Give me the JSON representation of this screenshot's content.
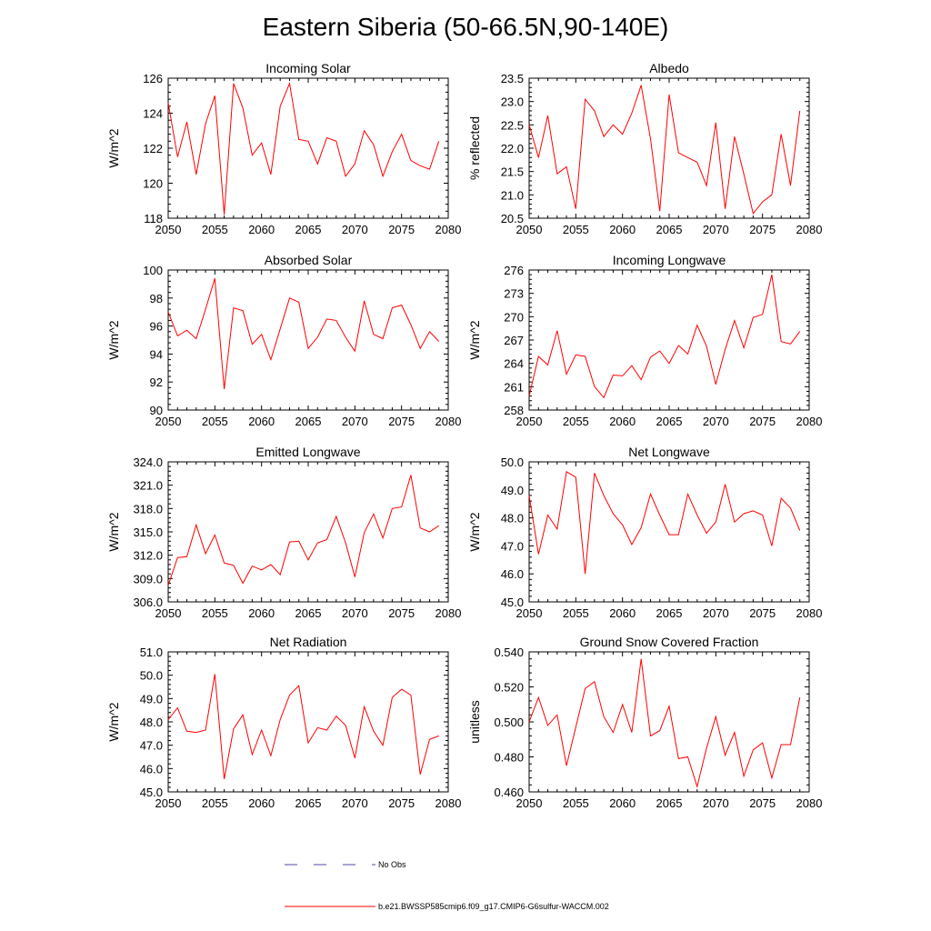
{
  "page": {
    "title": "Eastern Siberia (50-66.5N,90-140E)"
  },
  "legend": {
    "obs_label": "No Obs",
    "model_label": "b.e21.BWSSP585cmip6.f09_g17.CMIP6-G6sulfur-WACCM.002",
    "obs_color": "#4a4aa8",
    "model_color": "#ff0000"
  },
  "chart_data": [
    {
      "type": "line",
      "title": "Incoming Solar",
      "xlabel": "",
      "ylabel": "W/m^2",
      "xlim": [
        2050,
        2080
      ],
      "ylim": [
        118,
        126
      ],
      "xticks": [
        2050,
        2055,
        2060,
        2065,
        2070,
        2075,
        2080
      ],
      "yticks": [
        "118",
        "120",
        "122",
        "124",
        "126"
      ],
      "x": [
        2050,
        2051,
        2052,
        2053,
        2054,
        2055,
        2056,
        2057,
        2058,
        2059,
        2060,
        2061,
        2062,
        2063,
        2064,
        2065,
        2066,
        2067,
        2068,
        2069,
        2070,
        2071,
        2072,
        2073,
        2074,
        2075,
        2076,
        2077,
        2078,
        2079
      ],
      "series": [
        {
          "values": [
            124.6,
            121.5,
            123.5,
            120.5,
            123.4,
            125.0,
            118.2,
            125.7,
            124.3,
            121.6,
            122.3,
            120.5,
            124.4,
            125.7,
            122.5,
            122.4,
            121.1,
            122.6,
            122.4,
            120.4,
            121.1,
            123.0,
            122.2,
            120.4,
            121.8,
            122.8,
            121.3,
            121.0,
            120.8,
            122.4
          ]
        }
      ]
    },
    {
      "type": "line",
      "title": "Albedo",
      "xlabel": "",
      "ylabel": "% reflected",
      "xlim": [
        2050,
        2080
      ],
      "ylim": [
        20.5,
        23.5
      ],
      "xticks": [
        2050,
        2055,
        2060,
        2065,
        2070,
        2075,
        2080
      ],
      "yticks": [
        "20.5",
        "21.0",
        "21.5",
        "22.0",
        "22.5",
        "23.0",
        "23.5"
      ],
      "x": [
        2050,
        2051,
        2052,
        2053,
        2054,
        2055,
        2056,
        2057,
        2058,
        2059,
        2060,
        2061,
        2062,
        2063,
        2064,
        2065,
        2066,
        2067,
        2068,
        2069,
        2070,
        2071,
        2072,
        2073,
        2074,
        2075,
        2076,
        2077,
        2078,
        2079
      ],
      "series": [
        {
          "values": [
            22.5,
            21.8,
            22.7,
            21.45,
            21.6,
            20.7,
            23.05,
            22.8,
            22.25,
            22.5,
            22.3,
            22.75,
            23.35,
            22.2,
            20.65,
            23.15,
            21.9,
            21.8,
            21.7,
            21.2,
            22.55,
            20.7,
            22.25,
            21.45,
            20.6,
            20.85,
            21.0,
            22.3,
            21.2,
            22.8
          ]
        }
      ]
    },
    {
      "type": "line",
      "title": "Absorbed Solar",
      "xlabel": "",
      "ylabel": "W/m^2",
      "xlim": [
        2050,
        2080
      ],
      "ylim": [
        90,
        100
      ],
      "xticks": [
        2050,
        2055,
        2060,
        2065,
        2070,
        2075,
        2080
      ],
      "yticks": [
        "90",
        "92",
        "94",
        "96",
        "98",
        "100"
      ],
      "x": [
        2050,
        2051,
        2052,
        2053,
        2054,
        2055,
        2056,
        2057,
        2058,
        2059,
        2060,
        2061,
        2062,
        2063,
        2064,
        2065,
        2066,
        2067,
        2068,
        2069,
        2070,
        2071,
        2072,
        2073,
        2074,
        2075,
        2076,
        2077,
        2078,
        2079
      ],
      "series": [
        {
          "values": [
            97.0,
            95.3,
            95.7,
            95.1,
            97.2,
            99.4,
            91.5,
            97.3,
            97.1,
            94.7,
            95.4,
            93.6,
            95.8,
            98.0,
            97.7,
            94.4,
            95.2,
            96.5,
            96.4,
            95.2,
            94.2,
            97.8,
            95.4,
            95.1,
            97.3,
            97.5,
            96.1,
            94.4,
            95.6,
            94.9
          ]
        }
      ]
    },
    {
      "type": "line",
      "title": "Incoming Longwave",
      "xlabel": "",
      "ylabel": "W/m^2",
      "xlim": [
        2050,
        2080
      ],
      "ylim": [
        258,
        276
      ],
      "xticks": [
        2050,
        2055,
        2060,
        2065,
        2070,
        2075,
        2080
      ],
      "yticks": [
        "258",
        "261",
        "264",
        "267",
        "270",
        "273",
        "276"
      ],
      "x": [
        2050,
        2051,
        2052,
        2053,
        2054,
        2055,
        2056,
        2057,
        2058,
        2059,
        2060,
        2061,
        2062,
        2063,
        2064,
        2065,
        2066,
        2067,
        2068,
        2069,
        2070,
        2071,
        2072,
        2073,
        2074,
        2075,
        2076,
        2077,
        2078,
        2079
      ],
      "series": [
        {
          "values": [
            259.8,
            264.9,
            263.8,
            268.2,
            262.6,
            265.1,
            264.9,
            261.0,
            259.6,
            262.5,
            262.4,
            263.7,
            261.9,
            264.8,
            265.6,
            264.0,
            266.3,
            265.2,
            268.9,
            266.2,
            261.3,
            265.8,
            269.5,
            266.0,
            269.9,
            270.3,
            275.4,
            266.8,
            266.5,
            268.1
          ]
        }
      ]
    },
    {
      "type": "line",
      "title": "Emitted Longwave",
      "xlabel": "",
      "ylabel": "W/m^2",
      "xlim": [
        2050,
        2080
      ],
      "ylim": [
        306,
        324
      ],
      "xticks": [
        2050,
        2055,
        2060,
        2065,
        2070,
        2075,
        2080
      ],
      "yticks": [
        "306.0",
        "309.0",
        "312.0",
        "315.0",
        "318.0",
        "321.0",
        "324.0"
      ],
      "x": [
        2050,
        2051,
        2052,
        2053,
        2054,
        2055,
        2056,
        2057,
        2058,
        2059,
        2060,
        2061,
        2062,
        2063,
        2064,
        2065,
        2066,
        2067,
        2068,
        2069,
        2070,
        2071,
        2072,
        2073,
        2074,
        2075,
        2076,
        2077,
        2078,
        2079
      ],
      "series": [
        {
          "values": [
            308.1,
            311.7,
            311.8,
            315.9,
            312.2,
            314.6,
            311.0,
            310.7,
            308.4,
            310.6,
            310.1,
            310.8,
            309.5,
            313.7,
            313.8,
            311.4,
            313.6,
            314.0,
            317.0,
            313.6,
            309.2,
            314.9,
            317.3,
            314.2,
            318.0,
            318.2,
            322.3,
            315.5,
            315.0,
            315.8
          ]
        }
      ]
    },
    {
      "type": "line",
      "title": "Net Longwave",
      "xlabel": "",
      "ylabel": "W/m^2",
      "xlim": [
        2050,
        2080
      ],
      "ylim": [
        45,
        50
      ],
      "xticks": [
        2050,
        2055,
        2060,
        2065,
        2070,
        2075,
        2080
      ],
      "yticks": [
        "45.0",
        "46.0",
        "47.0",
        "48.0",
        "49.0",
        "50.0"
      ],
      "x": [
        2050,
        2051,
        2052,
        2053,
        2054,
        2055,
        2056,
        2057,
        2058,
        2059,
        2060,
        2061,
        2062,
        2063,
        2064,
        2065,
        2066,
        2067,
        2068,
        2069,
        2070,
        2071,
        2072,
        2073,
        2074,
        2075,
        2076,
        2077,
        2078,
        2079
      ],
      "series": [
        {
          "values": [
            48.8,
            46.7,
            48.1,
            47.6,
            49.65,
            49.45,
            46.0,
            49.6,
            48.8,
            48.15,
            47.75,
            47.05,
            47.65,
            48.85,
            48.1,
            47.4,
            47.4,
            48.85,
            48.1,
            47.45,
            47.85,
            49.2,
            47.85,
            48.15,
            48.25,
            48.1,
            47.0,
            48.7,
            48.35,
            47.55
          ]
        }
      ]
    },
    {
      "type": "line",
      "title": "Net Radiation",
      "xlabel": "",
      "ylabel": "W/m^2",
      "xlim": [
        2050,
        2080
      ],
      "ylim": [
        45,
        51
      ],
      "xticks": [
        2050,
        2055,
        2060,
        2065,
        2070,
        2075,
        2080
      ],
      "yticks": [
        "45.0",
        "46.0",
        "47.0",
        "48.0",
        "49.0",
        "50.0",
        "51.0"
      ],
      "x": [
        2050,
        2051,
        2052,
        2053,
        2054,
        2055,
        2056,
        2057,
        2058,
        2059,
        2060,
        2061,
        2062,
        2063,
        2064,
        2065,
        2066,
        2067,
        2068,
        2069,
        2070,
        2071,
        2072,
        2073,
        2074,
        2075,
        2076,
        2077,
        2078,
        2079
      ],
      "series": [
        {
          "values": [
            48.1,
            48.6,
            47.6,
            47.55,
            47.65,
            50.05,
            45.55,
            47.7,
            48.3,
            46.6,
            47.65,
            46.55,
            48.1,
            49.15,
            49.55,
            47.1,
            47.75,
            47.65,
            48.25,
            47.85,
            46.45,
            48.65,
            47.6,
            47.0,
            49.05,
            49.4,
            49.15,
            45.75,
            47.25,
            47.4
          ]
        }
      ]
    },
    {
      "type": "line",
      "title": "Ground Snow Covered Fraction",
      "xlabel": "",
      "ylabel": "unitless",
      "xlim": [
        2050,
        2080
      ],
      "ylim": [
        0.46,
        0.54
      ],
      "xticks": [
        2050,
        2055,
        2060,
        2065,
        2070,
        2075,
        2080
      ],
      "yticks": [
        "0.460",
        "0.480",
        "0.500",
        "0.520",
        "0.540"
      ],
      "x": [
        2050,
        2051,
        2052,
        2053,
        2054,
        2055,
        2056,
        2057,
        2058,
        2059,
        2060,
        2061,
        2062,
        2063,
        2064,
        2065,
        2066,
        2067,
        2068,
        2069,
        2070,
        2071,
        2072,
        2073,
        2074,
        2075,
        2076,
        2077,
        2078,
        2079
      ],
      "series": [
        {
          "values": [
            0.5,
            0.514,
            0.498,
            0.504,
            0.475,
            0.497,
            0.519,
            0.523,
            0.503,
            0.494,
            0.51,
            0.494,
            0.536,
            0.492,
            0.495,
            0.509,
            0.479,
            0.48,
            0.463,
            0.485,
            0.503,
            0.481,
            0.494,
            0.469,
            0.484,
            0.488,
            0.468,
            0.487,
            0.487,
            0.514
          ]
        }
      ]
    }
  ]
}
